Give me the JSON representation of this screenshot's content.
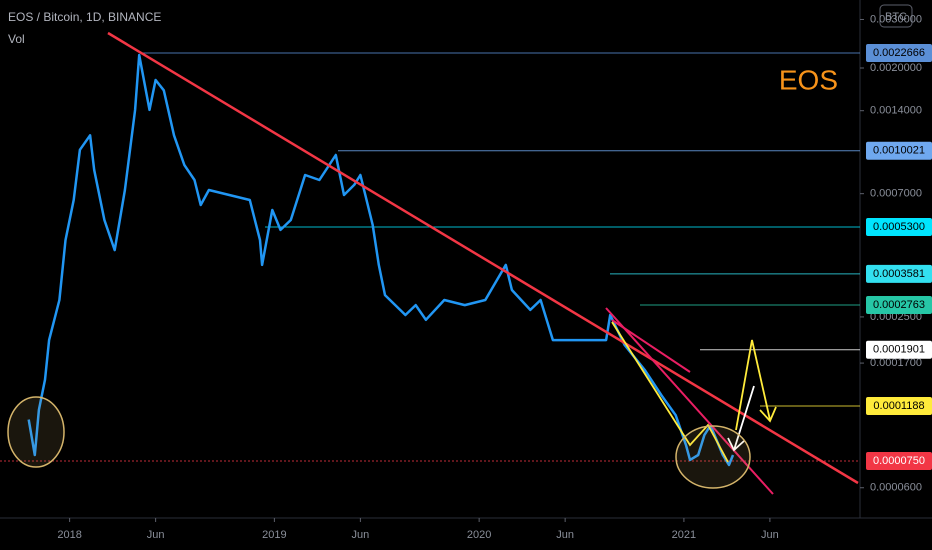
{
  "chart_data": {
    "type": "line",
    "title": "EOS / Bitcoin, 1D, BINANCE",
    "subtitle": "Vol",
    "annotation": "EOS",
    "currency": "BTC",
    "color": "#2196f3",
    "log_scale": true,
    "grid": false,
    "x": [
      2017.8,
      2017.83,
      2017.85,
      2017.88,
      2017.9,
      2017.95,
      2017.98,
      2018.02,
      2018.05,
      2018.1,
      2018.12,
      2018.17,
      2018.22,
      2018.27,
      2018.32,
      2018.34,
      2018.39,
      2018.42,
      2018.46,
      2018.51,
      2018.56,
      2018.61,
      2018.64,
      2018.68,
      2018.78,
      2018.88,
      2018.93,
      2018.94,
      2018.99,
      2019.03,
      2019.08,
      2019.15,
      2019.22,
      2019.3,
      2019.34,
      2019.39,
      2019.42,
      2019.48,
      2019.51,
      2019.54,
      2019.64,
      2019.69,
      2019.74,
      2019.83,
      2019.93,
      2020.03,
      2020.13,
      2020.16,
      2020.25,
      2020.3,
      2020.36,
      2020.44,
      2020.54,
      2020.62,
      2020.64,
      2020.71,
      2020.81,
      2020.89,
      2020.96,
      2021.01,
      2021.03,
      2021.07,
      2021.1,
      2021.13,
      2021.19,
      2021.22,
      2021.24
    ],
    "values": [
      0.000106,
      7.89e-05,
      0.000115,
      0.000148,
      0.000206,
      0.000288,
      0.000475,
      0.000664,
      0.00101,
      0.00114,
      0.000853,
      0.000562,
      0.000437,
      0.000722,
      0.00141,
      0.00223,
      0.00141,
      0.00181,
      0.00166,
      0.00114,
      0.00089,
      0.000785,
      0.000637,
      0.000722,
      0.000692,
      0.000664,
      0.000475,
      0.000386,
      0.000611,
      0.000517,
      0.000562,
      0.000818,
      0.000785,
      0.000967,
      0.000692,
      0.000753,
      0.000818,
      0.000539,
      0.000386,
      0.0003,
      0.000254,
      0.000276,
      0.000244,
      0.000288,
      0.000276,
      0.000288,
      0.000386,
      0.000313,
      0.000265,
      0.000288,
      0.000206,
      0.000206,
      0.000206,
      0.000206,
      0.000254,
      0.000198,
      0.00016,
      0.00013,
      0.00011,
      8.57e-05,
      7.57e-05,
      7.89e-05,
      9.32e-05,
      0.000101,
      7.89e-05,
      7.26e-05,
      7.89e-05
    ],
    "xlim": [
      2017.66,
      2021.86
    ],
    "xticks": [
      2018,
      {
        "value": 2018.42,
        "label": "Jun"
      },
      2019,
      {
        "value": 2019.42,
        "label": "Jun"
      },
      2020,
      {
        "value": 2020.42,
        "label": "Jun"
      },
      2021,
      {
        "value": 2021.42,
        "label": "Jun"
      }
    ],
    "ylim": [
      4.66e-05,
      0.00353
    ],
    "yticks": [
      {
        "value": 0.003,
        "label": "0.0030000"
      },
      {
        "value": 0.002,
        "label": "0.0020000"
      },
      {
        "value": 0.0014,
        "label": "0.0014000"
      },
      {
        "value": 0.0007,
        "label": "0.0007000"
      },
      {
        "value": 0.00025,
        "label": "0.0002500"
      },
      {
        "value": 0.00017,
        "label": "0.0001700"
      },
      {
        "value": 6e-05,
        "label": "0.0000600"
      }
    ],
    "levels": [
      {
        "value": 0.0022666,
        "color": "#5b8fd6",
        "text_color": "#000000"
      },
      {
        "value": 0.0010021,
        "color": "#6fa8ef",
        "text_color": "#000000"
      },
      {
        "value": 0.00053,
        "label": "0.0005300",
        "color": "#00e5ff",
        "text_color": "#000000"
      },
      {
        "value": 0.0003581,
        "color": "#33e0f0",
        "text_color": "#000000"
      },
      {
        "value": 0.0002763,
        "color": "#26c6a6",
        "text_color": "#000000"
      },
      {
        "value": 0.0001901,
        "color": "#ffffff",
        "text_color": "#000000"
      },
      {
        "value": 0.0001188,
        "color": "#ffeb3b",
        "text_color": "#000000"
      },
      {
        "value": 7.5e-05,
        "label": "0.0000750",
        "color": "#f23645",
        "text_color": "#ffffff"
      }
    ]
  }
}
